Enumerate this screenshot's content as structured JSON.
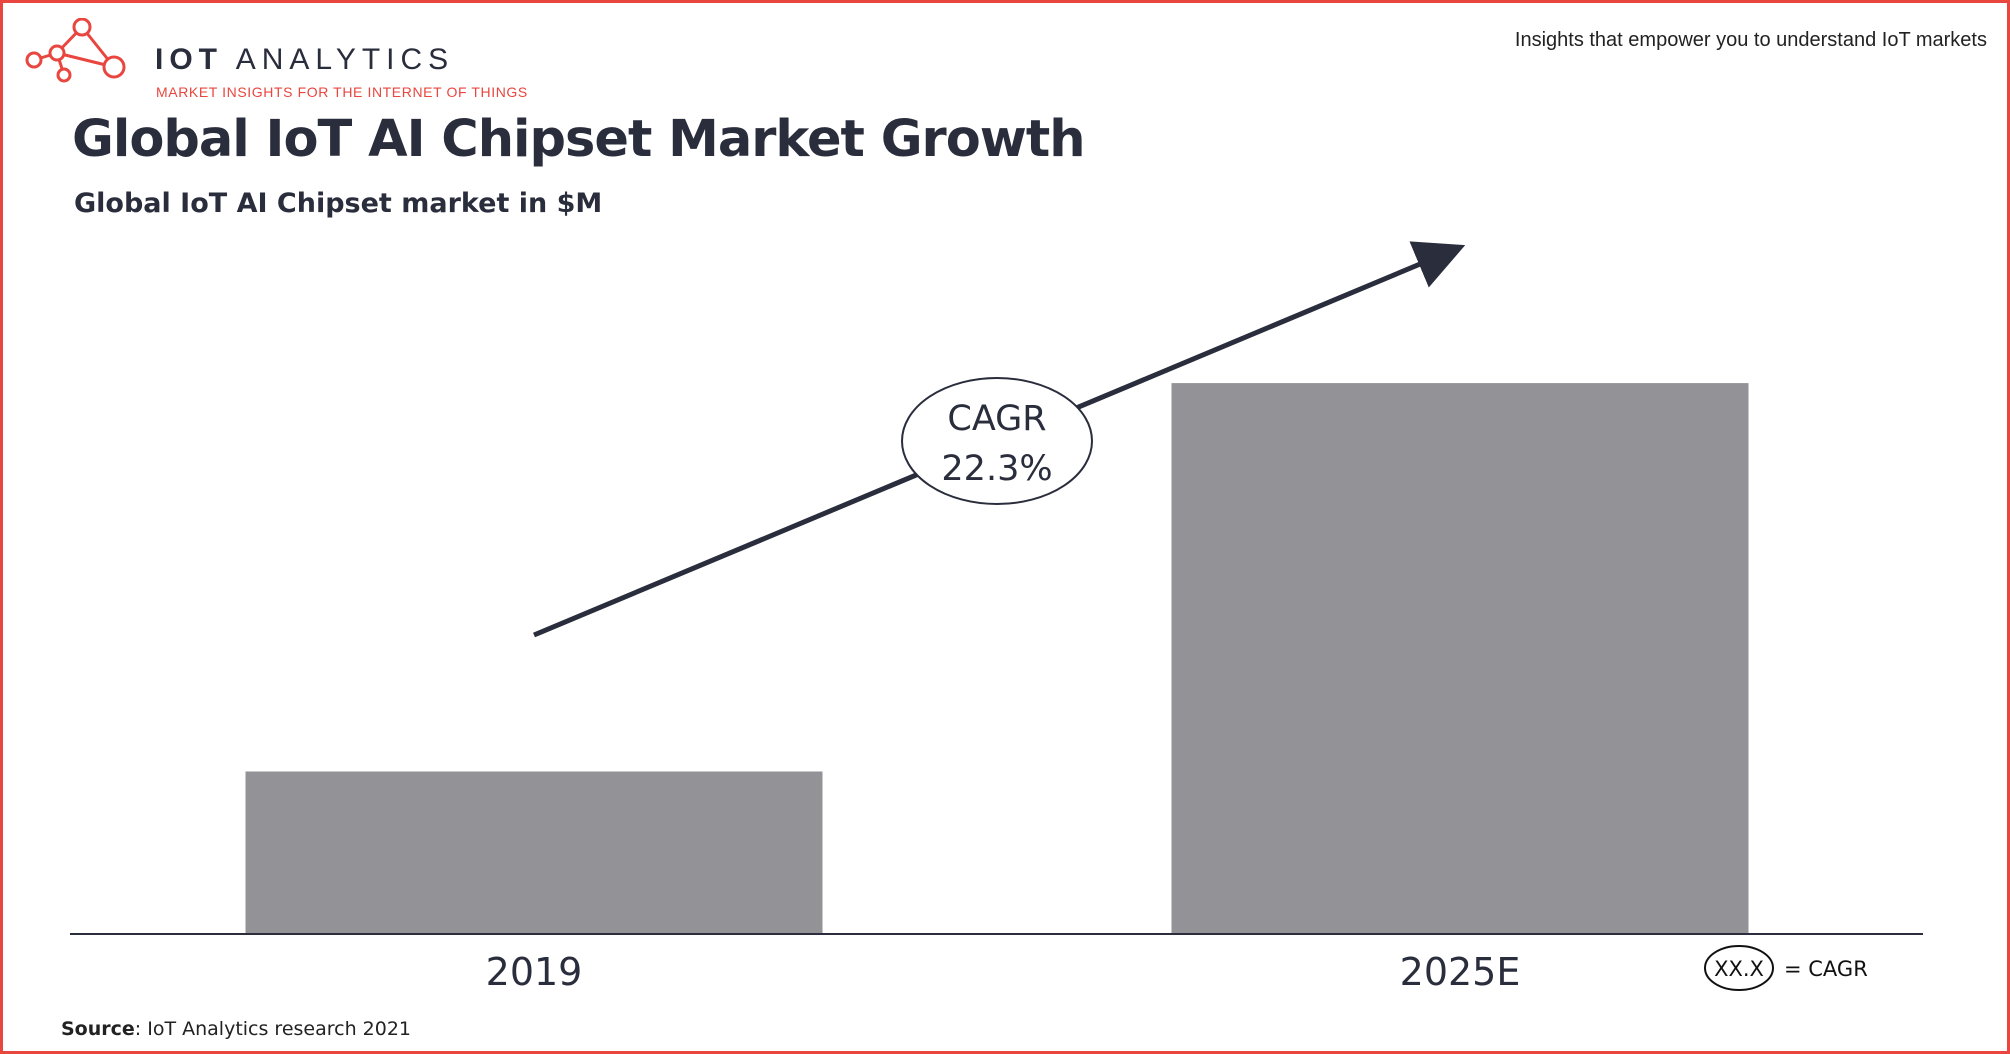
{
  "header": {
    "brand_name_bold": "IOT",
    "brand_name_light": "ANALYTICS",
    "brand_tagline": "MARKET INSIGHTS FOR THE INTERNET OF THINGS",
    "tagline": "Insights that empower you to understand IoT markets"
  },
  "colors": {
    "accent": "#e8463f",
    "bar": "#939397",
    "text": "#2a2d3c"
  },
  "chart_data": {
    "type": "bar",
    "title": "Global IoT AI Chipset Market Growth",
    "subtitle": "Global IoT AI Chipset market in $M",
    "categories": [
      "2019",
      "2025E"
    ],
    "values": [
      29.5,
      100
    ],
    "value_note": "relative bar heights; no absolute values printed",
    "ylim": [
      0,
      110
    ],
    "grid": false,
    "annotation": {
      "label": "CAGR",
      "value": "22.3%"
    },
    "legend": {
      "symbol": "XX.X",
      "text": "= CAGR"
    }
  },
  "footer": {
    "source_label": "Source",
    "source_text": ": IoT Analytics research 2021"
  }
}
